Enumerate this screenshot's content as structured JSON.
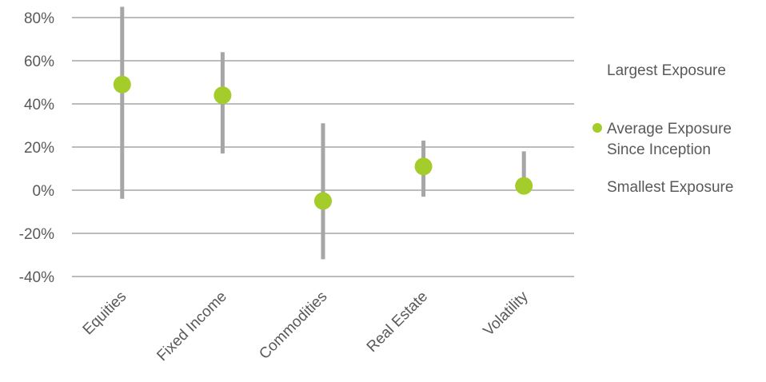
{
  "chart_data": {
    "type": "scatter",
    "title": "",
    "xlabel": "",
    "ylabel": "",
    "ylim": [
      -40,
      80
    ],
    "yticks": [
      80,
      60,
      40,
      20,
      0,
      -20,
      -40
    ],
    "ytick_labels": [
      "80%",
      "60%",
      "40%",
      "20%",
      "0%",
      "-20%",
      "-40%"
    ],
    "grid": true,
    "legend_position": "right",
    "categories": [
      "Equities",
      "Fixed Income",
      "Commodities",
      "Real Estate",
      "Volatility"
    ],
    "series": [
      {
        "name": "Largest Exposure",
        "values": [
          85,
          64,
          31,
          23,
          18
        ]
      },
      {
        "name": "Average Exposure Since Inception",
        "values": [
          49,
          44,
          -5,
          11,
          2
        ]
      },
      {
        "name": "Smallest Exposure",
        "values": [
          -4,
          17,
          -32,
          -3,
          0
        ]
      }
    ],
    "legend": {
      "largest": "Largest Exposure",
      "average_line1": "Average Exposure",
      "average_line2": "Since Inception",
      "smallest": "Smallest Exposure"
    },
    "colors": {
      "range": "#a6a6a6",
      "average": "#a4cc2a",
      "grid": "#a6a6a6",
      "text": "#595959"
    }
  }
}
